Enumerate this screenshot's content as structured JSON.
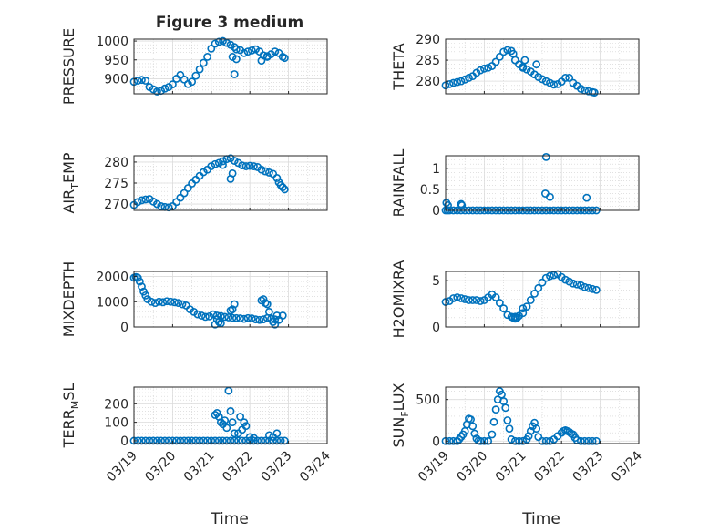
{
  "figure": {
    "title": "Figure 3 medium",
    "xlabel": "Time",
    "marker_color": "#0072BD"
  },
  "chart_data": [
    {
      "type": "scatter",
      "id": "pressure",
      "ylabel": "PRESSURE",
      "ylim": [
        860,
        1005
      ],
      "yticks": [
        900,
        950,
        1000
      ],
      "xlim": [
        0,
        5
      ],
      "x": [
        0.0,
        0.1,
        0.2,
        0.3,
        0.4,
        0.5,
        0.6,
        0.7,
        0.8,
        0.9,
        1.0,
        1.1,
        1.2,
        1.3,
        1.4,
        1.5,
        1.6,
        1.7,
        1.8,
        1.9,
        2.0,
        2.1,
        2.2,
        2.3,
        2.4,
        2.5,
        2.6,
        2.65,
        2.75,
        2.85,
        2.95,
        3.05,
        3.15,
        3.25,
        3.35,
        3.45,
        3.55,
        3.65,
        3.75,
        3.85,
        3.9,
        2.55,
        2.6,
        2.65,
        3.3,
        3.45
      ],
      "y": [
        892,
        895,
        897,
        895,
        878,
        872,
        866,
        868,
        874,
        878,
        885,
        900,
        910,
        898,
        886,
        892,
        908,
        925,
        942,
        958,
        980,
        993,
        998,
        1000,
        995,
        990,
        984,
        978,
        976,
        968,
        972,
        975,
        978,
        972,
        962,
        958,
        965,
        972,
        968,
        958,
        955,
        958,
        912,
        952,
        948,
        960
      ],
      "title": ""
    },
    {
      "type": "scatter",
      "id": "theta",
      "ylabel": "THETA",
      "ylim": [
        277,
        290
      ],
      "yticks": [
        280,
        285,
        290
      ],
      "xlim": [
        0,
        5
      ],
      "x": [
        0.0,
        0.1,
        0.2,
        0.3,
        0.4,
        0.5,
        0.6,
        0.7,
        0.8,
        0.9,
        1.0,
        1.1,
        1.2,
        1.3,
        1.4,
        1.5,
        1.6,
        1.7,
        1.75,
        1.8,
        1.9,
        2.0,
        2.1,
        2.2,
        2.3,
        2.4,
        2.5,
        2.6,
        2.7,
        2.8,
        2.9,
        3.0,
        3.1,
        3.2,
        3.3,
        3.4,
        3.5,
        3.6,
        3.7,
        3.8,
        3.85,
        2.0,
        2.05,
        2.35
      ],
      "y": [
        279,
        279.3,
        279.6,
        279.8,
        280,
        280.4,
        280.8,
        281.2,
        282,
        282.6,
        283,
        283.2,
        283.6,
        284.6,
        285.8,
        287,
        287.4,
        287.2,
        286.5,
        285,
        284,
        283.2,
        282.8,
        282.3,
        281.6,
        281,
        280.5,
        280,
        279.6,
        279.2,
        279.3,
        279.9,
        280.8,
        280.8,
        279.6,
        278.9,
        278.2,
        277.8,
        277.6,
        277.4,
        277.3,
        283.4,
        285,
        284
      ],
      "title": ""
    },
    {
      "type": "scatter",
      "id": "air_temp",
      "ylabel": "AIR",
      "ylabel_sub": "T",
      "ylabel_after": "EMP",
      "ylim": [
        268.5,
        281.5
      ],
      "yticks": [
        270,
        275,
        280
      ],
      "xlim": [
        0,
        5
      ],
      "x": [
        0.0,
        0.1,
        0.2,
        0.3,
        0.4,
        0.5,
        0.6,
        0.7,
        0.8,
        0.9,
        1.0,
        1.1,
        1.2,
        1.3,
        1.4,
        1.5,
        1.6,
        1.7,
        1.8,
        1.9,
        2.0,
        2.1,
        2.2,
        2.3,
        2.4,
        2.5,
        2.6,
        2.7,
        2.8,
        2.9,
        3.0,
        3.1,
        3.2,
        3.3,
        3.4,
        3.5,
        3.6,
        3.7,
        3.75,
        3.8,
        3.85,
        3.9,
        2.5,
        2.55,
        2.3
      ],
      "y": [
        269.8,
        270.5,
        270.9,
        271.1,
        271.2,
        270.6,
        270,
        269.5,
        269.3,
        269.2,
        269.5,
        270.5,
        271.5,
        272.6,
        273.8,
        274.9,
        275.8,
        276.7,
        277.6,
        278.2,
        279,
        279.5,
        279.8,
        280.2,
        280.7,
        280.9,
        280.3,
        279.8,
        279.2,
        279,
        279.1,
        279,
        278.8,
        278.2,
        277.8,
        277.5,
        277.2,
        276.2,
        275.2,
        274.5,
        274,
        273.5,
        276,
        277.3,
        279.3
      ],
      "title": ""
    },
    {
      "type": "scatter",
      "id": "rainfall",
      "ylabel": "RAINFALL",
      "ylim": [
        0,
        1.3
      ],
      "yticks": [
        0,
        0.5,
        1
      ],
      "ytick_labels": [
        "0",
        "0.5",
        "1"
      ],
      "xlim": [
        0,
        5
      ],
      "x": [
        0.0,
        0.05,
        0.1,
        0.2,
        0.3,
        0.4,
        0.5,
        0.6,
        0.7,
        0.8,
        0.9,
        1.0,
        1.1,
        1.2,
        1.3,
        1.4,
        1.5,
        1.6,
        1.7,
        1.8,
        1.9,
        2.0,
        2.1,
        2.2,
        2.3,
        2.4,
        2.5,
        2.6,
        2.7,
        2.8,
        2.9,
        3.0,
        3.1,
        3.2,
        3.3,
        3.4,
        3.5,
        3.6,
        3.7,
        3.8,
        3.9,
        0.02,
        0.06,
        0.4,
        0.42,
        2.6,
        2.58,
        2.7,
        3.65
      ],
      "y": [
        0,
        0,
        0,
        0,
        0,
        0,
        0,
        0,
        0,
        0,
        0,
        0,
        0,
        0,
        0,
        0,
        0,
        0,
        0,
        0,
        0,
        0,
        0,
        0,
        0,
        0,
        0,
        0,
        0,
        0,
        0,
        0,
        0,
        0,
        0,
        0,
        0,
        0,
        0,
        0,
        0,
        0.18,
        0.12,
        0.15,
        0.12,
        1.27,
        0.4,
        0.32,
        0.3
      ],
      "title": ""
    },
    {
      "type": "scatter",
      "id": "mixdepth",
      "ylabel": "MIXDEPTH",
      "ylim": [
        0,
        2200
      ],
      "yticks": [
        0,
        1000,
        2000
      ],
      "xlim": [
        0,
        5
      ],
      "x": [
        0.0,
        0.05,
        0.1,
        0.15,
        0.2,
        0.25,
        0.3,
        0.35,
        0.45,
        0.55,
        0.65,
        0.75,
        0.85,
        0.95,
        1.05,
        1.15,
        1.25,
        1.35,
        1.45,
        1.55,
        1.65,
        1.75,
        1.85,
        1.95,
        2.05,
        2.15,
        2.25,
        2.35,
        2.45,
        2.55,
        2.65,
        2.75,
        2.85,
        2.95,
        3.05,
        3.15,
        3.25,
        3.35,
        3.45,
        3.55,
        3.65,
        3.75,
        3.85,
        2.1,
        2.15,
        2.2,
        2.25,
        2.5,
        2.55,
        2.6,
        3.3,
        3.35,
        3.4,
        3.45,
        3.5,
        3.6,
        3.65,
        3.7
      ],
      "y": [
        1950,
        1980,
        1950,
        1800,
        1600,
        1400,
        1250,
        1100,
        1000,
        950,
        1000,
        980,
        1020,
        1000,
        980,
        950,
        900,
        850,
        700,
        600,
        500,
        450,
        400,
        420,
        500,
        450,
        430,
        400,
        380,
        360,
        350,
        340,
        320,
        350,
        340,
        300,
        280,
        300,
        350,
        320,
        300,
        280,
        450,
        100,
        300,
        200,
        150,
        650,
        700,
        900,
        1050,
        1100,
        950,
        900,
        600,
        200,
        100,
        450
      ],
      "title": ""
    },
    {
      "type": "scatter",
      "id": "h2omixra",
      "ylabel": "H2OMIXRA",
      "ylim": [
        0,
        6
      ],
      "yticks": [
        0,
        5
      ],
      "xlim": [
        0,
        5
      ],
      "x": [
        0.0,
        0.1,
        0.2,
        0.3,
        0.4,
        0.5,
        0.6,
        0.7,
        0.8,
        0.9,
        1.0,
        1.1,
        1.2,
        1.3,
        1.4,
        1.5,
        1.6,
        1.7,
        1.8,
        1.9,
        2.0,
        2.1,
        2.2,
        2.3,
        2.4,
        2.5,
        2.6,
        2.7,
        2.8,
        2.9,
        3.0,
        3.1,
        3.2,
        3.3,
        3.4,
        3.5,
        3.6,
        3.7,
        3.8,
        3.9,
        1.75,
        1.8,
        1.85,
        2.0
      ],
      "y": [
        2.7,
        2.8,
        3.1,
        3.2,
        3.1,
        3,
        2.9,
        2.9,
        2.9,
        2.8,
        2.9,
        3.2,
        3.5,
        3.2,
        2.6,
        2,
        1.3,
        1.1,
        1.1,
        1.2,
        1.5,
        2.2,
        2.9,
        3.6,
        4.2,
        4.8,
        5.3,
        5.5,
        5.6,
        5.7,
        5.4,
        5.1,
        4.9,
        4.7,
        4.6,
        4.5,
        4.3,
        4.2,
        4.1,
        4,
        1.0,
        0.9,
        1.0,
        2.0
      ],
      "title": ""
    },
    {
      "type": "scatter",
      "id": "terr_msl",
      "ylabel": "TERR",
      "ylabel_sub": "M",
      "ylabel_after": "SL",
      "ylim": [
        -15,
        290
      ],
      "yticks": [
        0,
        100,
        200
      ],
      "xlim": [
        0,
        5
      ],
      "x": [
        0.0,
        0.1,
        0.2,
        0.3,
        0.4,
        0.5,
        0.6,
        0.7,
        0.8,
        0.9,
        1.0,
        1.1,
        1.2,
        1.3,
        1.4,
        1.5,
        1.6,
        1.7,
        1.8,
        1.9,
        2.0,
        2.1,
        2.2,
        2.3,
        2.4,
        2.5,
        2.6,
        2.7,
        2.8,
        2.9,
        3.0,
        3.1,
        3.2,
        3.3,
        3.4,
        3.5,
        3.6,
        3.7,
        3.8,
        3.9,
        2.1,
        2.15,
        2.2,
        2.25,
        2.3,
        2.35,
        2.4,
        2.45,
        2.5,
        2.55,
        2.6,
        2.7,
        2.75,
        2.8,
        2.85,
        2.9,
        3.0,
        3.1,
        3.5,
        3.6,
        3.7
      ],
      "y": [
        0,
        0,
        0,
        0,
        0,
        0,
        0,
        0,
        0,
        0,
        0,
        0,
        0,
        0,
        0,
        0,
        0,
        0,
        0,
        0,
        0,
        0,
        0,
        0,
        0,
        0,
        0,
        0,
        0,
        0,
        0,
        0,
        0,
        0,
        0,
        0,
        0,
        0,
        0,
        0,
        140,
        150,
        130,
        100,
        90,
        110,
        70,
        270,
        160,
        100,
        40,
        40,
        130,
        60,
        100,
        80,
        20,
        15,
        30,
        20,
        40
      ],
      "title": ""
    },
    {
      "type": "scatter",
      "id": "sun_flux",
      "ylabel": "SUN",
      "ylabel_sub": "F",
      "ylabel_after": "LUX",
      "ylim": [
        -30,
        650
      ],
      "yticks": [
        0,
        500
      ],
      "xlim": [
        0,
        5
      ],
      "x": [
        0.0,
        0.1,
        0.2,
        0.3,
        0.35,
        0.4,
        0.45,
        0.5,
        0.55,
        0.6,
        0.65,
        0.7,
        0.75,
        0.8,
        0.85,
        0.9,
        1.0,
        1.1,
        1.2,
        1.25,
        1.3,
        1.35,
        1.4,
        1.45,
        1.5,
        1.55,
        1.6,
        1.65,
        1.7,
        1.8,
        1.9,
        2.0,
        2.1,
        2.15,
        2.2,
        2.25,
        2.3,
        2.35,
        2.4,
        2.5,
        2.6,
        2.7,
        2.8,
        2.9,
        3.0,
        3.05,
        3.1,
        3.15,
        3.2,
        3.25,
        3.3,
        3.35,
        3.4,
        3.5,
        3.6,
        3.7,
        3.8,
        3.9
      ],
      "y": [
        0,
        0,
        0,
        0,
        20,
        50,
        80,
        120,
        200,
        270,
        260,
        180,
        90,
        30,
        5,
        0,
        0,
        0,
        80,
        230,
        380,
        500,
        600,
        560,
        480,
        400,
        250,
        150,
        20,
        0,
        0,
        0,
        20,
        60,
        120,
        180,
        220,
        150,
        50,
        0,
        0,
        0,
        20,
        60,
        100,
        120,
        130,
        120,
        110,
        90,
        80,
        40,
        10,
        0,
        0,
        0,
        0,
        0
      ],
      "title": ""
    }
  ],
  "x_axis": {
    "ticks": [
      0,
      1,
      2,
      3,
      4,
      5
    ],
    "tick_labels": [
      "03/19",
      "03/20",
      "03/21",
      "03/22",
      "03/23",
      "03/24"
    ]
  }
}
